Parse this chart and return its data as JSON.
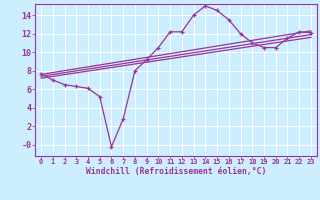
{
  "xlabel": "Windchill (Refroidissement éolien,°C)",
  "bg_color": "#cceeff",
  "line_color": "#993399",
  "grid_color": "#ffffff",
  "xlim": [
    -0.5,
    23.5
  ],
  "ylim": [
    -1.2,
    15.2
  ],
  "xticks": [
    0,
    1,
    2,
    3,
    4,
    5,
    6,
    7,
    8,
    9,
    10,
    11,
    12,
    13,
    14,
    15,
    16,
    17,
    18,
    19,
    20,
    21,
    22,
    23
  ],
  "yticks": [
    0,
    2,
    4,
    6,
    8,
    10,
    12,
    14
  ],
  "ytick_labels": [
    "-0",
    "2",
    "4",
    "6",
    "8",
    "10",
    "12",
    "14"
  ],
  "line1_x": [
    0,
    1,
    2,
    3,
    4,
    5,
    6,
    7,
    8,
    9,
    10,
    11,
    12,
    13,
    14,
    15,
    16,
    17,
    18,
    19,
    20,
    21,
    22,
    23
  ],
  "line1_y": [
    7.7,
    7.0,
    6.5,
    6.3,
    6.1,
    5.2,
    -0.2,
    2.8,
    8.0,
    9.2,
    10.5,
    12.2,
    12.2,
    14.0,
    15.0,
    14.5,
    13.5,
    12.0,
    11.0,
    10.5,
    10.5,
    11.5,
    12.2,
    12.1
  ],
  "line2_x": [
    0,
    23
  ],
  "line2_y": [
    7.6,
    12.3
  ],
  "line3_x": [
    0,
    23
  ],
  "line3_y": [
    7.4,
    11.9
  ],
  "line4_x": [
    0,
    23
  ],
  "line4_y": [
    7.2,
    11.6
  ]
}
